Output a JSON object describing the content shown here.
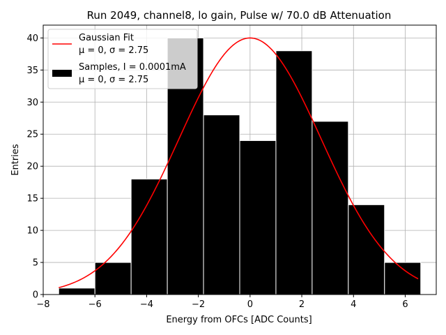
{
  "chart_data": {
    "type": "bar",
    "title": "Run 2049, channel8, lo gain, Pulse w/ 70.0 dB Attenuation",
    "xlabel": "Energy from OFCs [ADC Counts]",
    "ylabel": "Entries",
    "xlim": [
      -8.0,
      7.2
    ],
    "ylim": [
      0,
      42
    ],
    "xticks": [
      -8,
      -6,
      -4,
      -2,
      0,
      2,
      4,
      6
    ],
    "yticks": [
      0,
      5,
      10,
      15,
      20,
      25,
      30,
      35,
      40
    ],
    "grid": true,
    "legend_position": "top-left",
    "histogram": {
      "name": "Samples, I = 0.0001mA",
      "stats": "μ = 0, σ = 2.75",
      "color": "#000000",
      "bin_edges": [
        -7.4,
        -6.0,
        -4.6,
        -3.2,
        -1.8,
        -0.4,
        1.0,
        2.4,
        3.8,
        5.2,
        6.6
      ],
      "counts": [
        1,
        5,
        18,
        40,
        28,
        24,
        38,
        27,
        14,
        5
      ]
    },
    "fit": {
      "name": "Gaussian Fit",
      "stats": "μ = 0, σ = 2.75",
      "color": "#ff0000",
      "mu": 0,
      "sigma": 2.75,
      "amplitude": 40,
      "x_range": [
        -7.4,
        6.5
      ]
    }
  }
}
